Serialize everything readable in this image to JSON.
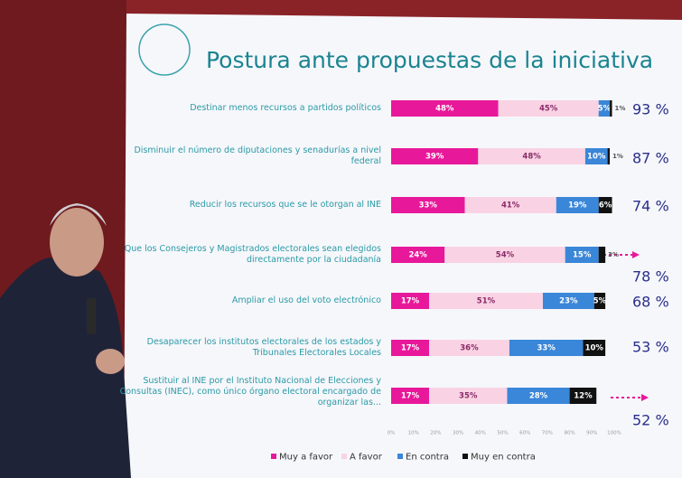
{
  "chart_data": {
    "type": "stacked-bar-horizontal",
    "title": "Postura ante propuestas de la iniciativa",
    "categories": [
      "Destinar menos recursos a partidos políticos",
      "Disminuir el número de diputaciones y senadurías a nivel federal",
      "Reducir los recursos que se le otorgan al INE",
      "Que los Consejeros y Magistrados electorales sean elegidos directamente por la ciudadanía",
      "Ampliar el uso del voto electrónico",
      "Desaparecer los institutos electorales de los estados y Tribunales Electorales Locales",
      "Sustituir al INE por el Instituto Nacional de Elecciones y Consultas (INEC), como único órgano electoral encargado de organizar las..."
    ],
    "series": [
      {
        "name": "Muy a favor",
        "color": "#e8189a",
        "values": [
          48,
          39,
          33,
          24,
          17,
          17,
          17
        ],
        "value_labels": [
          "48%",
          "39%",
          "33%",
          "24%",
          "17%",
          "17%",
          "17%"
        ]
      },
      {
        "name": "A favor",
        "color": "#f9d3e3",
        "values": [
          45,
          48,
          41,
          54,
          51,
          36,
          35
        ],
        "value_labels": [
          "45%",
          "48%",
          "41%",
          "54%",
          "51%",
          "36%",
          "35%"
        ]
      },
      {
        "name": "En contra",
        "color": "#3a86d8",
        "values": [
          5,
          10,
          19,
          15,
          23,
          33,
          28
        ],
        "value_labels": [
          "5%",
          "10%",
          "19%",
          "15%",
          "23%",
          "33%",
          "28%"
        ]
      },
      {
        "name": "Muy en contra",
        "color": "#111111",
        "values": [
          1,
          1,
          6,
          3,
          5,
          10,
          12
        ],
        "value_labels": [
          "1%",
          "1%",
          "6%",
          "3%",
          "5%",
          "10%",
          "12%"
        ]
      }
    ],
    "totals": {
      "values": [
        93,
        87,
        74,
        78,
        68,
        53,
        52
      ],
      "value_labels": [
        "93 %",
        "87 %",
        "74 %",
        "78 %",
        "68 %",
        "53 %",
        "52 %"
      ]
    },
    "xlim": [
      0,
      100
    ],
    "xticks": [
      {
        "value": 0,
        "label": "0%"
      },
      {
        "value": 10,
        "label": "10%"
      },
      {
        "value": 20,
        "label": "20%"
      },
      {
        "value": 30,
        "label": "30%"
      },
      {
        "value": 40,
        "label": "40%"
      },
      {
        "value": 50,
        "label": "50%"
      },
      {
        "value": 60,
        "label": "60%"
      },
      {
        "value": 70,
        "label": "70%"
      },
      {
        "value": 80,
        "label": "80%"
      },
      {
        "value": 90,
        "label": "90%"
      },
      {
        "value": 100,
        "label": "100%"
      }
    ]
  }
}
